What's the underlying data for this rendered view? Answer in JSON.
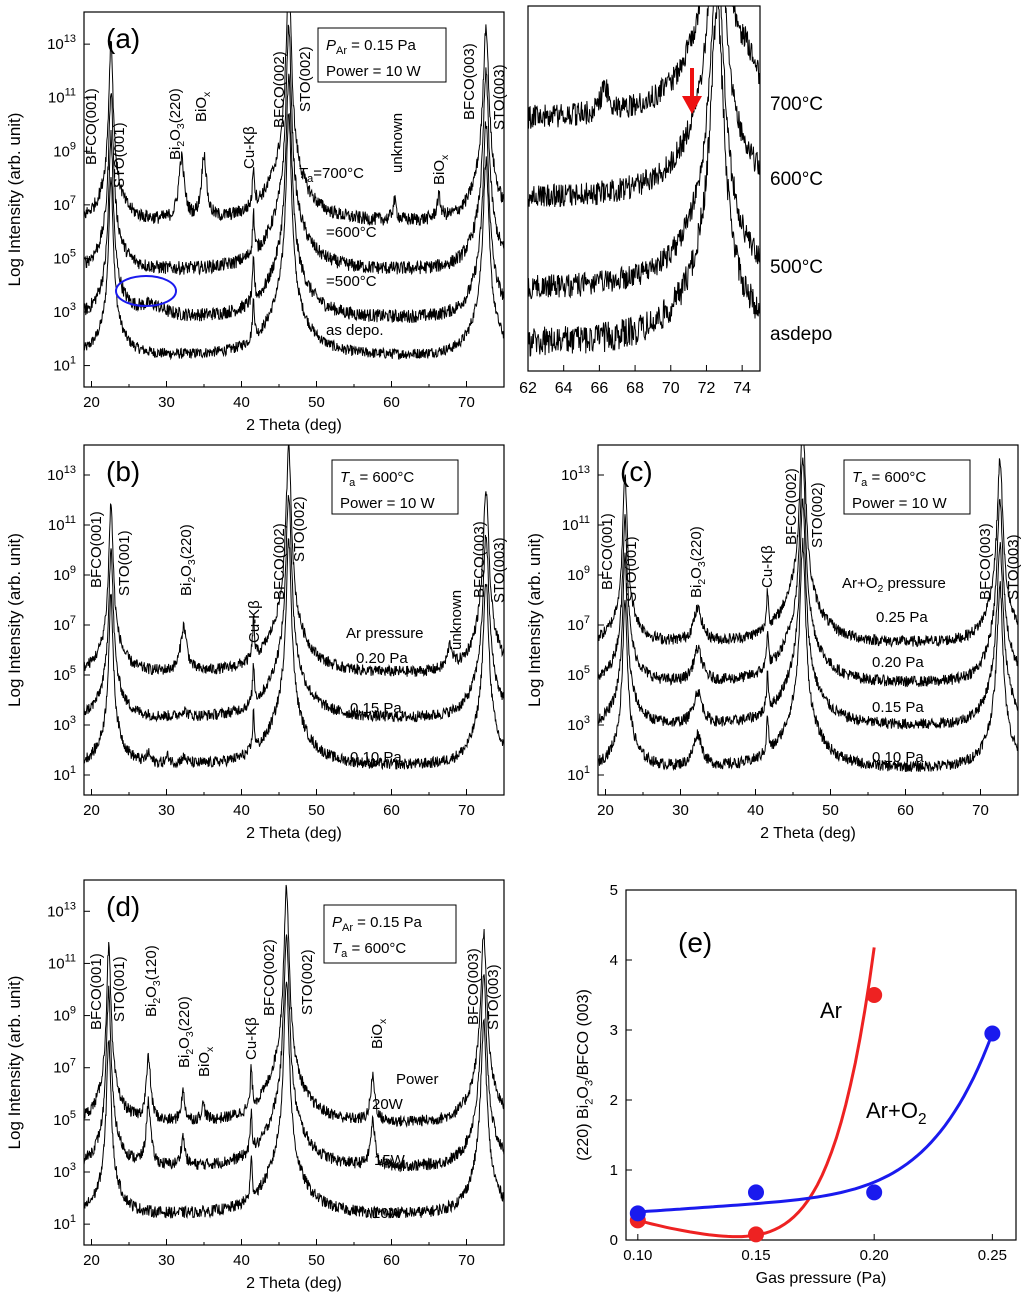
{
  "chart_data": [
    {
      "panel_label": "(a)",
      "type": "line",
      "xlabel": "2 Theta (deg)",
      "ylabel": "Log Intensity (arb. unit)",
      "xlim": [
        19,
        75
      ],
      "xticks": [
        "20",
        "30",
        "40",
        "50",
        "60",
        "70"
      ],
      "yticks": [
        "10",
        "10",
        "10",
        "10",
        "10",
        "10",
        "10"
      ],
      "yticks_exp": [
        "1",
        "3",
        "5",
        "7",
        "9",
        "11",
        "13"
      ],
      "conditions": [
        {
          "text": "P",
          "sub": "Ar",
          "rest": " = 0.15 Pa"
        },
        {
          "text": "Power = 10 W",
          "sub": "",
          "rest": ""
        }
      ],
      "peaks": [
        {
          "label": "BFCO(001)",
          "x": 22.3
        },
        {
          "label": "STO(001)",
          "x": 22.9
        },
        {
          "label": "Bi2O3(220)",
          "x": 32.0
        },
        {
          "label": "BiOx",
          "x": 35.0
        },
        {
          "label": "Cu-Kβ",
          "x": 41.6
        },
        {
          "label": "BFCO(002)",
          "x": 45.3
        },
        {
          "label": "STO(002)",
          "x": 46.5
        },
        {
          "label": "unknown",
          "x": 60.4
        },
        {
          "label": "BiOx",
          "x": 66.3
        },
        {
          "label": "BFCO(003)",
          "x": 72.0
        },
        {
          "label": "STO(003)",
          "x": 72.6
        }
      ],
      "series": [
        {
          "name": "as depo.",
          "baseline": 1.3
        },
        {
          "name": "=500°C",
          "baseline": 2.7
        },
        {
          "name": "=600°C",
          "baseline": 4.5
        },
        {
          "name": "T_a=700°C",
          "baseline": 6.3
        }
      ]
    },
    {
      "panel_label": "",
      "type": "line",
      "xlim": [
        62,
        75
      ],
      "xticks": [
        "62",
        "64",
        "66",
        "68",
        "70",
        "72",
        "74"
      ],
      "series": [
        {
          "name": "asdepo"
        },
        {
          "name": "500°C"
        },
        {
          "name": "600°C"
        },
        {
          "name": "700°C"
        }
      ],
      "annotation": "red arrow at ~71.2 deg on 700°C curve"
    },
    {
      "panel_label": "(b)",
      "type": "line",
      "xlabel": "2 Theta (deg)",
      "ylabel": "Log Intensity (arb. unit)",
      "xlim": [
        19,
        75
      ],
      "xticks": [
        "20",
        "30",
        "40",
        "50",
        "60",
        "70"
      ],
      "conditions": [
        {
          "text": "T",
          "sub": "a",
          "rest": " = 600°C"
        },
        {
          "text": "Power = 10 W",
          "sub": "",
          "rest": ""
        }
      ],
      "series_title": "Ar pressure",
      "peaks": [
        {
          "label": "BFCO(001)",
          "x": 22.3
        },
        {
          "label": "STO(001)",
          "x": 22.9
        },
        {
          "label": "Bi2O3(220)",
          "x": 32.3
        },
        {
          "label": "Cu-Kβ",
          "x": 41.6
        },
        {
          "label": "BFCO(002)",
          "x": 45.3
        },
        {
          "label": "STO(002)",
          "x": 46.5
        },
        {
          "label": "unknown",
          "x": 67.8
        },
        {
          "label": "BFCO(003)",
          "x": 72.0
        },
        {
          "label": "STO(003)",
          "x": 72.6
        }
      ],
      "series": [
        {
          "name": "0.10 Pa",
          "baseline": 1.3
        },
        {
          "name": "0.15 Pa",
          "baseline": 3.2
        },
        {
          "name": "0.20 Pa",
          "baseline": 5.0
        }
      ]
    },
    {
      "panel_label": "(c)",
      "type": "line",
      "xlabel": "2 Theta (deg)",
      "ylabel": "Log Intensity (arb. unit)",
      "xlim": [
        19,
        75
      ],
      "xticks": [
        "20",
        "30",
        "40",
        "50",
        "60",
        "70"
      ],
      "conditions": [
        {
          "text": "T",
          "sub": "a",
          "rest": " = 600°C"
        },
        {
          "text": "Power = 10 W",
          "sub": "",
          "rest": ""
        }
      ],
      "series_title": "Ar+O2 pressure",
      "peaks": [
        {
          "label": "BFCO(001)",
          "x": 22.3
        },
        {
          "label": "STO(001)",
          "x": 22.9
        },
        {
          "label": "Bi2O3(220)",
          "x": 32.3
        },
        {
          "label": "Cu-Kβ",
          "x": 41.6
        },
        {
          "label": "BFCO(002)",
          "x": 45.3
        },
        {
          "label": "STO(002)",
          "x": 46.5
        },
        {
          "label": "BFCO(003)",
          "x": 72.0
        },
        {
          "label": "STO(003)",
          "x": 72.6
        }
      ],
      "series": [
        {
          "name": "0.10 Pa",
          "baseline": 1.2
        },
        {
          "name": "0.15 Pa",
          "baseline": 2.9
        },
        {
          "name": "0.20 Pa",
          "baseline": 4.6
        },
        {
          "name": "0.25 Pa",
          "baseline": 6.2
        }
      ]
    },
    {
      "panel_label": "(d)",
      "type": "line",
      "xlabel": "2 Theta (deg)",
      "ylabel": "Log Intensity (arb. unit)",
      "xlim": [
        19,
        75
      ],
      "xticks": [
        "20",
        "30",
        "40",
        "50",
        "60",
        "70"
      ],
      "conditions": [
        {
          "text": "P",
          "sub": "Ar",
          "rest": " = 0.15 Pa"
        },
        {
          "text": "T",
          "sub": "a",
          "rest": " = 600°C"
        }
      ],
      "series_title": "Power",
      "peaks": [
        {
          "label": "BFCO(001)",
          "x": 22.0
        },
        {
          "label": "STO(001)",
          "x": 22.7
        },
        {
          "label": "Bi2O3(120)",
          "x": 27.6
        },
        {
          "label": "Bi2O3(220)",
          "x": 32.2
        },
        {
          "label": "BiOx",
          "x": 34.9
        },
        {
          "label": "Cu-Kβ",
          "x": 41.4
        },
        {
          "label": "BFCO(002)",
          "x": 45.0
        },
        {
          "label": "STO(002)",
          "x": 46.2
        },
        {
          "label": "BiOx",
          "x": 57.5
        },
        {
          "label": "BFCO(003)",
          "x": 71.6
        },
        {
          "label": "STO(003)",
          "x": 72.3
        }
      ],
      "series": [
        {
          "name": "10W",
          "baseline": 1.3
        },
        {
          "name": "15W",
          "baseline": 3.1
        },
        {
          "name": "20W",
          "baseline": 4.8
        }
      ]
    },
    {
      "panel_label": "(e)",
      "type": "line",
      "xlabel": "Gas pressure (Pa)",
      "ylabel": "(220) Bi2O3/BFCO (003)",
      "xlim": [
        0.095,
        0.26
      ],
      "ylim": [
        0,
        5
      ],
      "xticks": [
        "0.10",
        "0.15",
        "0.20",
        "0.25"
      ],
      "yticks": [
        "0",
        "1",
        "2",
        "3",
        "4",
        "5"
      ],
      "series": [
        {
          "name": "Ar",
          "color": "#ee2222",
          "x": [
            0.1,
            0.15,
            0.2
          ],
          "values": [
            0.28,
            0.08,
            3.5
          ]
        },
        {
          "name": "Ar+O2",
          "color": "#1a1aee",
          "x": [
            0.1,
            0.15,
            0.2,
            0.25
          ],
          "values": [
            0.38,
            0.68,
            0.68,
            2.95
          ]
        }
      ]
    }
  ]
}
